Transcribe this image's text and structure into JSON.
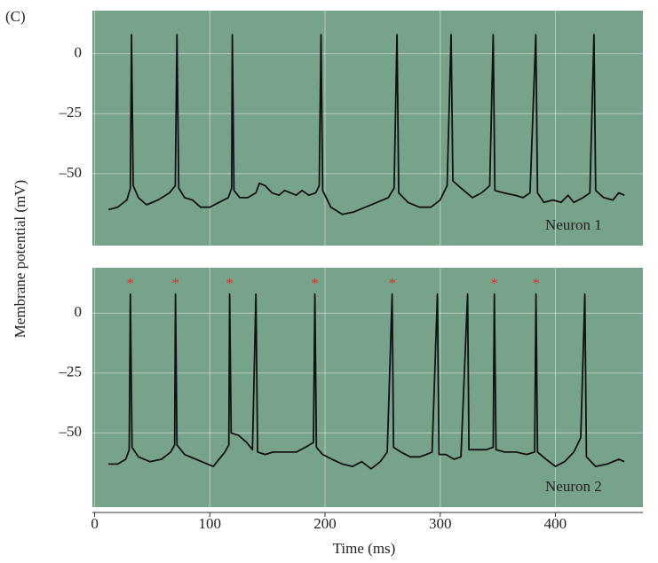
{
  "panel_label": "(C)",
  "chart_data": [
    {
      "type": "line",
      "ylabel": "Membrane potential (mV)",
      "background": "#77a38b",
      "grid": true,
      "xlim": [
        -2,
        476
      ],
      "ylim": [
        -80,
        18
      ],
      "yticks": [
        0,
        {
          "value": -25,
          "label": "–25"
        },
        {
          "value": -50,
          "label": "–50"
        }
      ],
      "x": [
        12,
        20,
        28,
        31,
        32,
        33.5,
        38,
        45,
        55,
        65,
        70,
        71.5,
        73,
        78,
        85,
        92,
        100,
        108,
        116,
        119,
        119.5,
        121,
        126,
        133,
        140,
        143,
        148,
        154,
        160,
        165,
        170,
        175,
        180,
        186,
        192,
        195,
        196.5,
        198,
        205,
        215,
        225,
        235,
        245,
        255,
        260,
        262.5,
        264,
        272,
        282,
        292,
        300,
        306,
        309.5,
        311,
        318,
        328,
        336,
        343,
        346,
        347.5,
        355,
        365,
        372,
        378,
        383,
        384.5,
        390,
        398,
        405,
        411,
        416,
        424,
        430,
        433.5,
        435,
        442,
        450,
        455,
        460
      ],
      "series": [
        {
          "name": "Neuron 1",
          "color": "#111111",
          "values": [
            -65,
            -64,
            -61,
            -56,
            8,
            -55,
            -60,
            -63,
            -61,
            -58,
            -55,
            8,
            -56,
            -60,
            -61,
            -64,
            -64,
            -62,
            -60,
            -56,
            8,
            -57,
            -60,
            -60,
            -58,
            -54,
            -55,
            -58,
            -59,
            -57,
            -58,
            -59,
            -57,
            -59,
            -58,
            -55,
            8,
            -57,
            -64,
            -67,
            -66,
            -64,
            -62,
            -60,
            -56,
            8,
            -58,
            -62,
            -64,
            -64,
            -61,
            -55,
            8,
            -53,
            -56,
            -60,
            -58,
            -55,
            8,
            -57,
            -58,
            -59,
            -60,
            -58,
            8,
            -58,
            -62,
            -61,
            -62,
            -59,
            -62,
            -60,
            -58,
            8,
            -57,
            -60,
            -61,
            -58,
            -59
          ]
        }
      ]
    },
    {
      "type": "line",
      "xlabel": "Time (ms)",
      "background": "#77a38b",
      "grid": true,
      "xlim": [
        -2,
        476
      ],
      "ylim": [
        -81,
        19
      ],
      "xticks": [
        0,
        100,
        200,
        300,
        400
      ],
      "yticks": [
        0,
        {
          "value": -25,
          "label": "–25"
        },
        {
          "value": -50,
          "label": "–50"
        }
      ],
      "x": [
        12,
        20,
        27,
        30,
        31,
        32.5,
        38,
        48,
        58,
        66,
        69.5,
        70.2,
        71.5,
        78,
        88,
        98,
        103,
        108,
        113,
        116.5,
        117.2,
        118.5,
        125,
        132,
        137,
        140,
        141.5,
        148,
        155,
        165,
        175,
        183,
        190,
        191.2,
        192.5,
        198,
        206,
        215,
        224,
        232,
        240,
        248,
        254,
        258.3,
        259.5,
        266,
        274,
        282,
        288,
        293,
        297.6,
        299,
        305,
        312,
        318,
        323.8,
        325,
        332,
        340,
        346,
        347,
        348.5,
        356,
        366,
        375,
        382,
        383.2,
        384.5,
        392,
        400,
        408,
        416,
        422,
        425.6,
        427,
        435,
        445,
        455,
        460
      ],
      "series": [
        {
          "name": "Neuron 2",
          "color": "#111111",
          "values": [
            -63,
            -63,
            -61,
            -57,
            8,
            -56,
            -60,
            -62,
            -61,
            -58,
            -55,
            8,
            -55,
            -59,
            -61,
            -63,
            -64,
            -61,
            -58,
            -55,
            8,
            -50,
            -51,
            -54,
            -57,
            8,
            -58,
            -59,
            -58,
            -58,
            -58,
            -56,
            -54,
            8,
            -56,
            -59,
            -61,
            -63,
            -64,
            -62,
            -65,
            -62,
            -58,
            8,
            -56,
            -58,
            -60,
            -60,
            -59,
            -58,
            8,
            -59,
            -59,
            -61,
            -60,
            8,
            -57,
            -57,
            -57,
            -56,
            8,
            -57,
            -58,
            -58,
            -59,
            -58,
            8,
            -58,
            -61,
            -64,
            -62,
            -58,
            -52,
            8,
            -60,
            -64,
            -63,
            -61,
            -62
          ]
        }
      ],
      "annotations": [
        {
          "x": 31,
          "text": "*"
        },
        {
          "x": 70.2,
          "text": "*"
        },
        {
          "x": 117.2,
          "text": "*"
        },
        {
          "x": 191.2,
          "text": "*"
        },
        {
          "x": 258.3,
          "text": "*"
        },
        {
          "x": 347,
          "text": "*"
        },
        {
          "x": 383.2,
          "text": "*"
        }
      ],
      "annotation_color": "#e0322e"
    }
  ]
}
